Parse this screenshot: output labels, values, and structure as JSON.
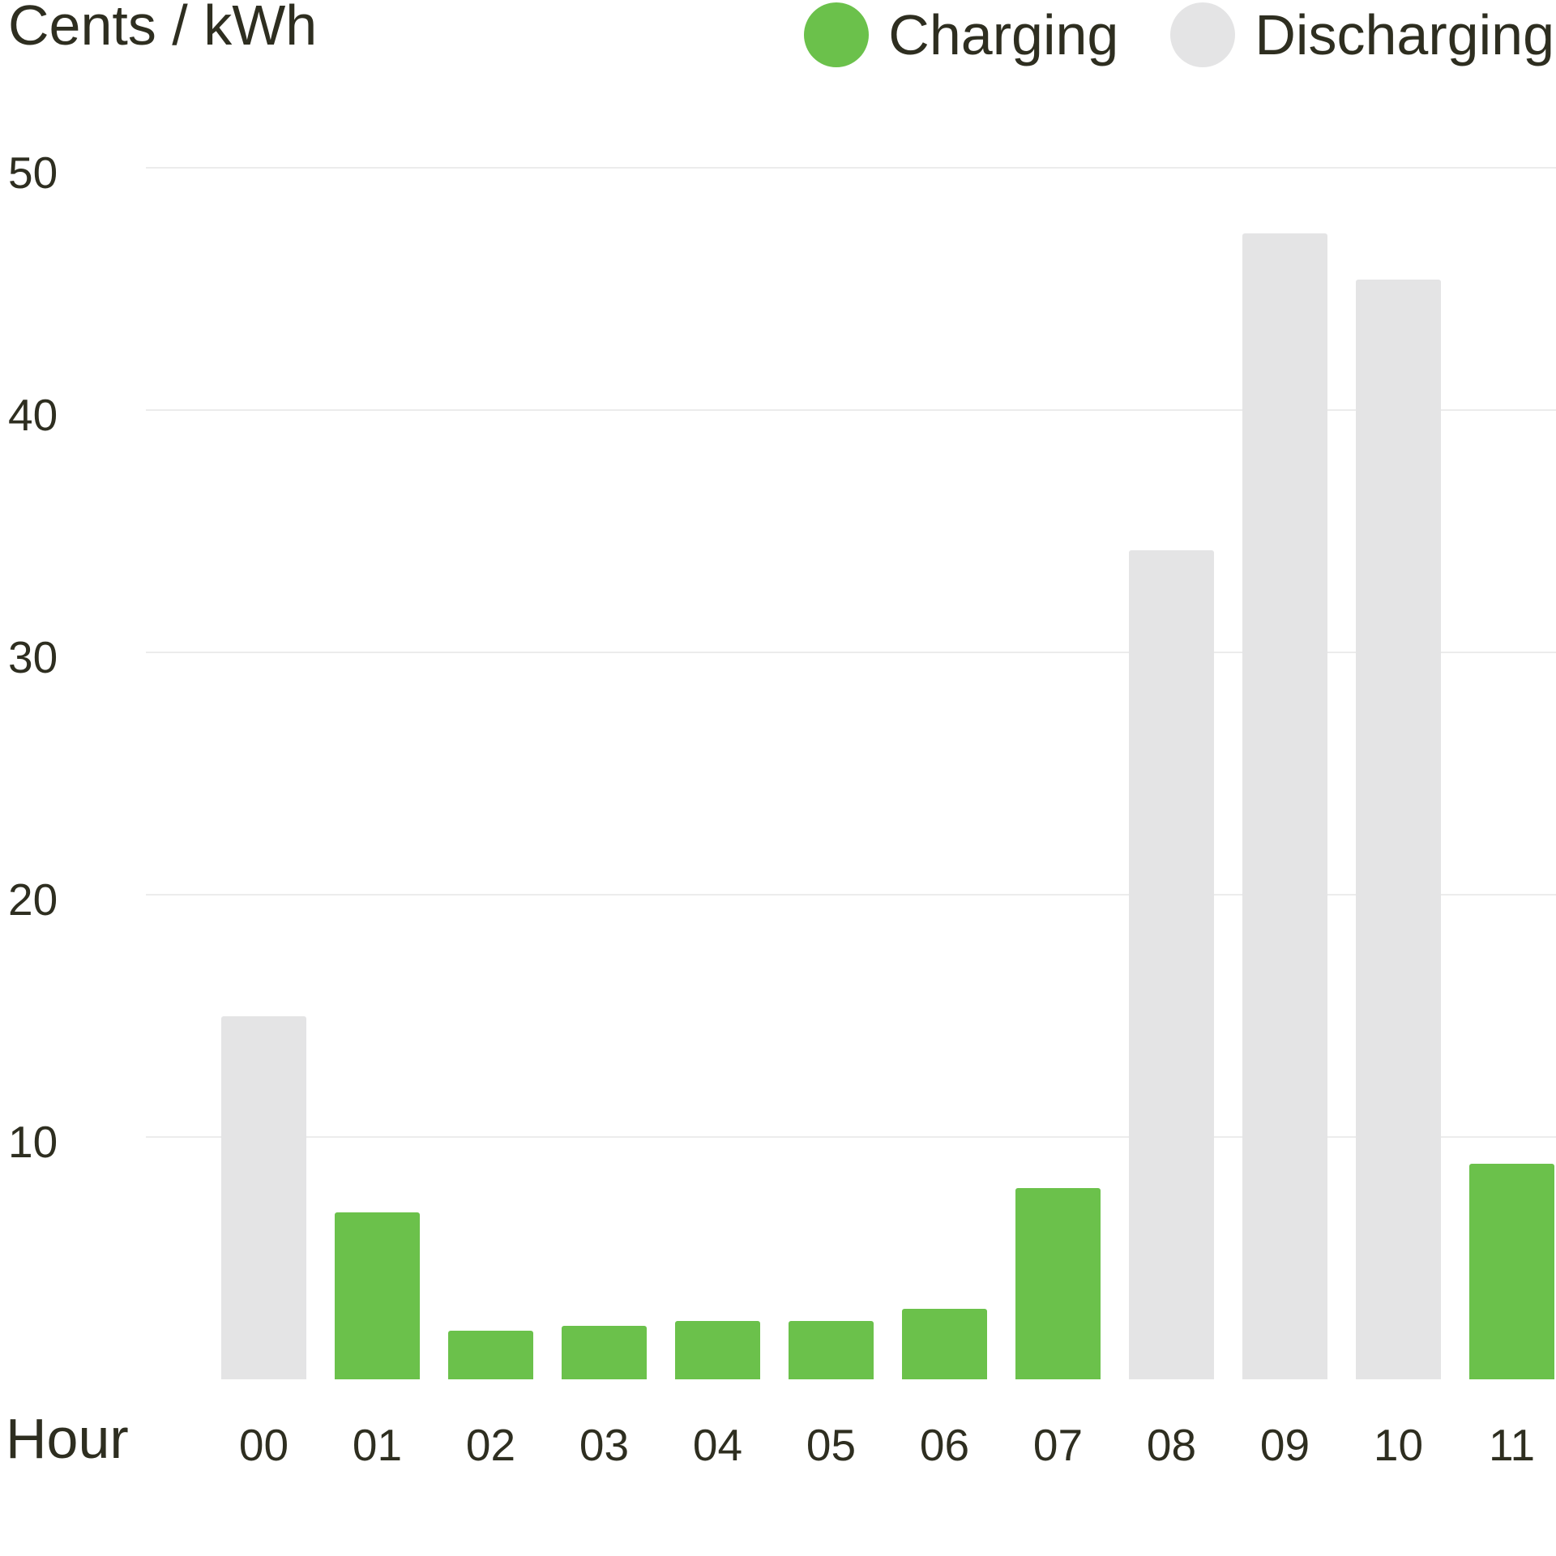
{
  "chart_data": {
    "type": "bar",
    "title": "",
    "ylabel": "Cents / kWh",
    "xlabel": "Hour",
    "categories": [
      "00",
      "01",
      "02",
      "03",
      "04",
      "05",
      "06",
      "07",
      "08",
      "09",
      "10",
      "11"
    ],
    "values": [
      15.0,
      6.9,
      2.0,
      2.2,
      2.4,
      2.4,
      2.9,
      7.9,
      34.2,
      47.3,
      45.4,
      8.9
    ],
    "bar_states": [
      "Discharging",
      "Charging",
      "Charging",
      "Charging",
      "Charging",
      "Charging",
      "Charging",
      "Charging",
      "Discharging",
      "Discharging",
      "Discharging",
      "Charging"
    ],
    "series_colors": {
      "Charging": "#6bc14b",
      "Discharging": "#e4e4e5"
    },
    "y_ticks": [
      10,
      20,
      30,
      40,
      50
    ],
    "ylim": [
      0,
      52
    ],
    "grid": "horizontal-only",
    "legend_position": "top-right"
  },
  "legend": {
    "items": [
      {
        "label": "Charging",
        "color": "#6bc14b"
      },
      {
        "label": "Discharging",
        "color": "#e4e4e5"
      }
    ]
  },
  "colors": {
    "background": "#ffffff",
    "text": "#2e2e20",
    "gridline": "#ececec",
    "charging_green": "#6bc14b",
    "discharging_gray": "#e4e4e5"
  }
}
